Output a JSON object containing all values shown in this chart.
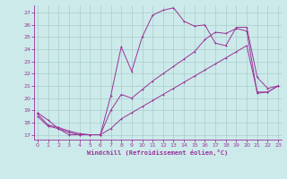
{
  "xlabel": "Windchill (Refroidissement éolien,°C)",
  "bg_color": "#cceaea",
  "line_color": "#993399",
  "grid_color": "#aacccc",
  "spine_color": "#993399",
  "yticks": [
    17,
    18,
    19,
    20,
    21,
    22,
    23,
    24,
    25,
    26,
    27
  ],
  "xticks": [
    0,
    1,
    2,
    3,
    4,
    5,
    6,
    7,
    8,
    9,
    10,
    11,
    12,
    13,
    14,
    15,
    16,
    17,
    18,
    19,
    20,
    21,
    22,
    23
  ],
  "series": [
    {
      "x": [
        0,
        1,
        2,
        3,
        4,
        5,
        6,
        7,
        8,
        9,
        10,
        11,
        12,
        13,
        14,
        15,
        16,
        17,
        18,
        19,
        20,
        21,
        22,
        23
      ],
      "y": [
        18.8,
        18.2,
        17.5,
        17.2,
        17.0,
        17.0,
        17.0,
        20.2,
        24.2,
        22.2,
        25.0,
        26.8,
        27.2,
        27.4,
        26.3,
        25.9,
        26.0,
        24.5,
        24.3,
        25.8,
        25.8,
        21.7,
        20.8,
        21.0
      ],
      "linestyle": "-"
    },
    {
      "x": [
        0,
        1,
        2,
        3,
        4,
        5,
        6,
        7,
        8,
        9,
        10,
        11,
        12,
        13,
        14,
        15,
        16,
        17,
        18,
        19,
        20,
        21,
        22,
        23
      ],
      "y": [
        18.5,
        17.7,
        17.5,
        17.0,
        17.0,
        17.0,
        17.0,
        17.5,
        18.3,
        18.8,
        19.3,
        19.8,
        20.3,
        20.8,
        21.3,
        21.8,
        22.3,
        22.8,
        23.3,
        23.8,
        24.3,
        20.5,
        20.5,
        21.0
      ],
      "linestyle": "-"
    },
    {
      "x": [
        0,
        1,
        2,
        3,
        4,
        5,
        6,
        7,
        8,
        9,
        10,
        11,
        12,
        13,
        14,
        15,
        16,
        17,
        18,
        19,
        20,
        21,
        22,
        23
      ],
      "y": [
        18.7,
        17.8,
        17.6,
        17.3,
        17.1,
        17.0,
        17.0,
        19.0,
        20.3,
        20.0,
        20.7,
        21.4,
        22.0,
        22.6,
        23.2,
        23.8,
        24.8,
        25.4,
        25.3,
        25.7,
        25.5,
        20.4,
        20.5,
        21.0
      ],
      "linestyle": "-"
    }
  ]
}
